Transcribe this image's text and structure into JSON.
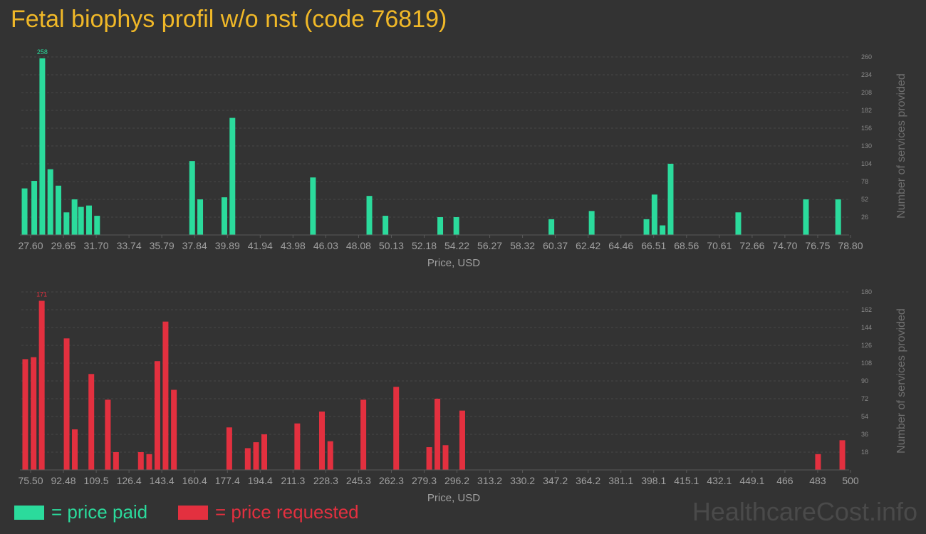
{
  "title": "Fetal biophys profil w/o nst (code 76819)",
  "colors": {
    "paid": "#2bdb9c",
    "requested": "#e3303f",
    "title": "#f0b828"
  },
  "legend": {
    "paid_label": "= price paid",
    "requested_label": "= price requested"
  },
  "watermark": "HealthcareCost.info",
  "chart_data": [
    {
      "type": "bar",
      "name": "price paid",
      "xlabel": "Price, USD",
      "ylabel": "Number of services provided",
      "x_tick_labels": [
        "27.60",
        "29.65",
        "31.70",
        "33.74",
        "35.79",
        "37.84",
        "39.89",
        "41.94",
        "43.98",
        "46.03",
        "48.08",
        "50.13",
        "52.18",
        "54.22",
        "56.27",
        "58.32",
        "60.37",
        "62.42",
        "64.46",
        "66.51",
        "68.56",
        "70.61",
        "72.66",
        "74.70",
        "76.75",
        "78.80"
      ],
      "xlim": [
        27.6,
        78.8
      ],
      "y_ticks": [
        26,
        52,
        78,
        104,
        130,
        156,
        182,
        208,
        234,
        260
      ],
      "ylim": [
        0,
        260
      ],
      "max_label": "258",
      "grid": true,
      "bars": [
        {
          "x": 27.8,
          "y": 68
        },
        {
          "x": 28.4,
          "y": 79
        },
        {
          "x": 28.9,
          "y": 258
        },
        {
          "x": 29.4,
          "y": 96
        },
        {
          "x": 29.9,
          "y": 72
        },
        {
          "x": 30.4,
          "y": 33
        },
        {
          "x": 30.9,
          "y": 52
        },
        {
          "x": 31.3,
          "y": 41
        },
        {
          "x": 31.8,
          "y": 43
        },
        {
          "x": 32.3,
          "y": 28
        },
        {
          "x": 38.2,
          "y": 108
        },
        {
          "x": 38.7,
          "y": 52
        },
        {
          "x": 40.2,
          "y": 55
        },
        {
          "x": 40.7,
          "y": 171
        },
        {
          "x": 45.7,
          "y": 84
        },
        {
          "x": 49.2,
          "y": 57
        },
        {
          "x": 50.2,
          "y": 28
        },
        {
          "x": 53.6,
          "y": 26
        },
        {
          "x": 54.6,
          "y": 26
        },
        {
          "x": 60.5,
          "y": 23
        },
        {
          "x": 63.0,
          "y": 35
        },
        {
          "x": 66.4,
          "y": 23
        },
        {
          "x": 66.9,
          "y": 59
        },
        {
          "x": 67.4,
          "y": 14
        },
        {
          "x": 67.9,
          "y": 104
        },
        {
          "x": 72.1,
          "y": 33
        },
        {
          "x": 76.3,
          "y": 52
        },
        {
          "x": 78.3,
          "y": 52
        }
      ]
    },
    {
      "type": "bar",
      "name": "price requested",
      "xlabel": "Price, USD",
      "ylabel": "Number of services provided",
      "x_tick_labels": [
        "75.50",
        "92.48",
        "109.5",
        "126.4",
        "143.4",
        "160.4",
        "177.4",
        "194.4",
        "211.3",
        "228.3",
        "245.3",
        "262.3",
        "279.3",
        "296.2",
        "313.2",
        "330.2",
        "347.2",
        "364.2",
        "381.1",
        "398.1",
        "415.1",
        "432.1",
        "449.1",
        "466",
        "483",
        "500"
      ],
      "xlim": [
        75.5,
        500
      ],
      "y_ticks": [
        18,
        36,
        54,
        72,
        90,
        108,
        126,
        144,
        162,
        180
      ],
      "ylim": [
        0,
        180
      ],
      "max_label": "171",
      "grid": true,
      "bars": [
        {
          "x": 77.5,
          "y": 112
        },
        {
          "x": 81.8,
          "y": 114
        },
        {
          "x": 86.0,
          "y": 171
        },
        {
          "x": 98.8,
          "y": 133
        },
        {
          "x": 103.0,
          "y": 41
        },
        {
          "x": 111.5,
          "y": 97
        },
        {
          "x": 120.0,
          "y": 71
        },
        {
          "x": 124.2,
          "y": 18
        },
        {
          "x": 137.0,
          "y": 18
        },
        {
          "x": 141.3,
          "y": 16
        },
        {
          "x": 145.5,
          "y": 110
        },
        {
          "x": 149.7,
          "y": 150
        },
        {
          "x": 154.0,
          "y": 81
        },
        {
          "x": 182.5,
          "y": 43
        },
        {
          "x": 192.0,
          "y": 22
        },
        {
          "x": 196.3,
          "y": 28
        },
        {
          "x": 200.5,
          "y": 36
        },
        {
          "x": 217.5,
          "y": 47
        },
        {
          "x": 230.2,
          "y": 59
        },
        {
          "x": 234.5,
          "y": 29
        },
        {
          "x": 251.5,
          "y": 71
        },
        {
          "x": 268.4,
          "y": 84
        },
        {
          "x": 285.4,
          "y": 23
        },
        {
          "x": 289.6,
          "y": 72
        },
        {
          "x": 293.8,
          "y": 25
        },
        {
          "x": 302.4,
          "y": 60
        },
        {
          "x": 485.5,
          "y": 16
        },
        {
          "x": 498.0,
          "y": 30
        }
      ]
    }
  ]
}
